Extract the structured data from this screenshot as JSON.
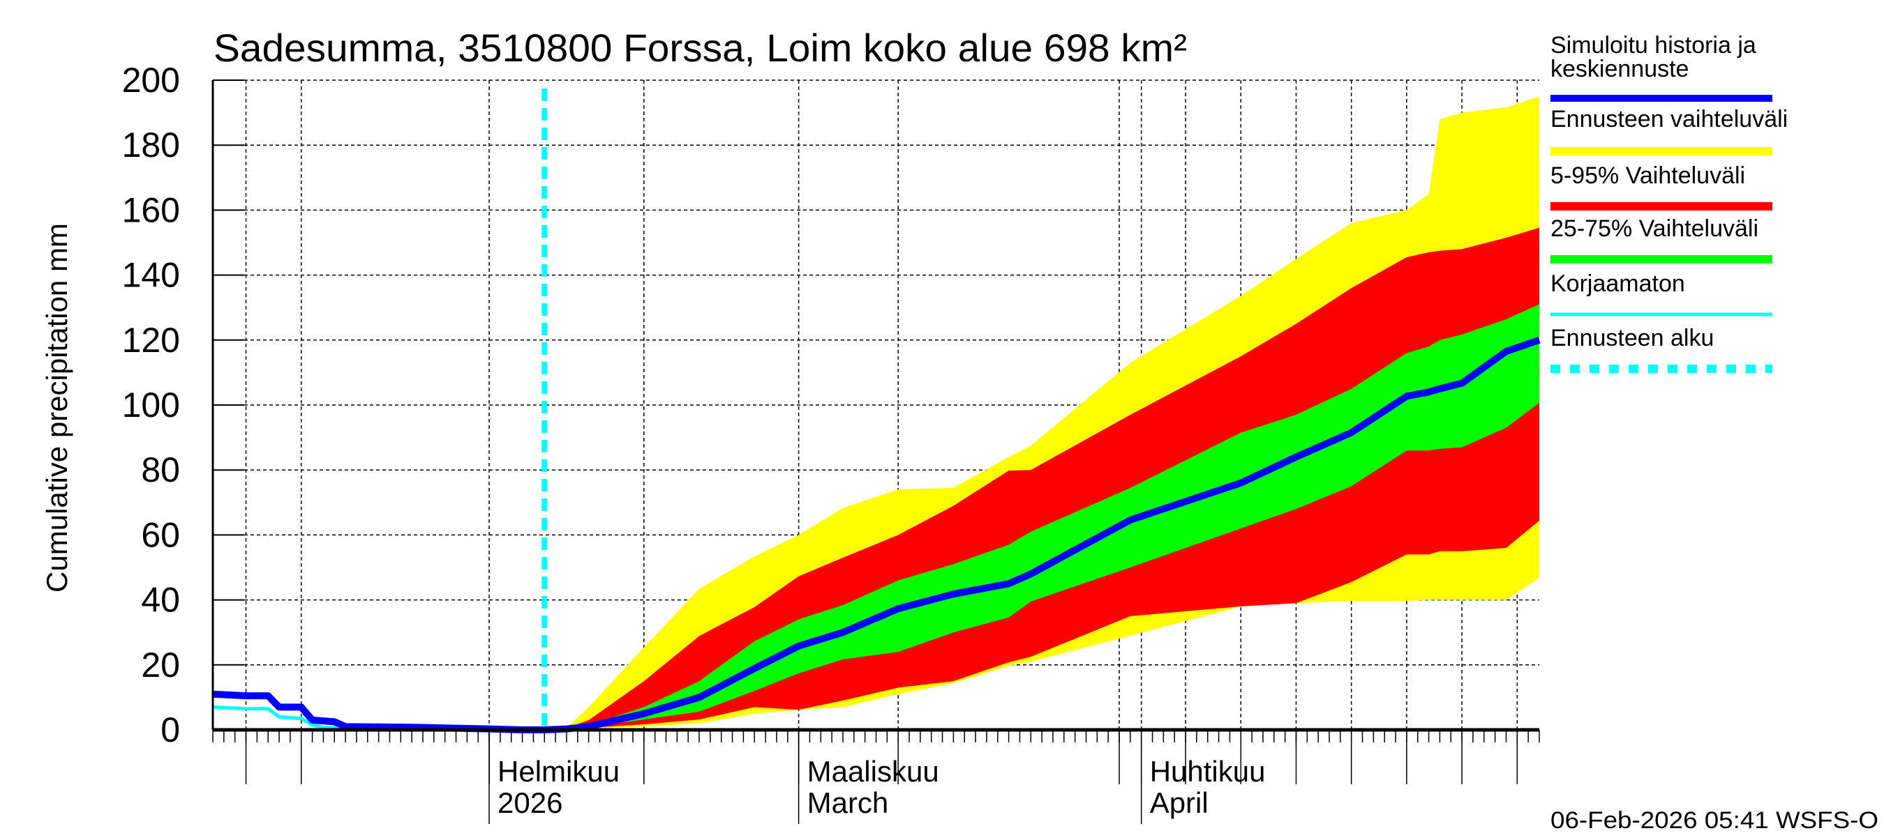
{
  "chart_data": {
    "type": "area",
    "title": "Sadesumma, 3510800 Forssa, Loim koko alue 698 km²",
    "ylabel": "Cumulative precipitation    mm",
    "xlabel": "",
    "ylim": [
      0,
      200
    ],
    "yticks": [
      "0",
      "20",
      "40",
      "60",
      "80",
      "100",
      "120",
      "140",
      "160",
      "180",
      "200"
    ],
    "xlim": [
      "2026-01-07",
      "2026-05-07"
    ],
    "grid": true,
    "legend_position": "right",
    "month_labels": [
      {
        "date": "2026-02-01",
        "line1": "Helmikuu",
        "line2": "2026"
      },
      {
        "date": "2026-03-01",
        "line1": "Maaliskuu",
        "line2": "March"
      },
      {
        "date": "2026-04-01",
        "line1": "Huhtikuu",
        "line2": "April"
      }
    ],
    "forecast_start": "2026-02-06",
    "history": {
      "name": "Simuloitu historia ja keskiennuste",
      "dates": [
        "2026-01-07",
        "2026-01-10",
        "2026-01-12",
        "2026-01-13",
        "2026-01-15",
        "2026-01-16",
        "2026-01-18",
        "2026-01-19",
        "2026-01-25",
        "2026-02-01",
        "2026-02-04",
        "2026-02-06"
      ],
      "values": [
        11,
        10.5,
        10.5,
        7,
        7,
        3,
        2.5,
        1,
        0.8,
        0.3,
        0,
        0
      ]
    },
    "uncorrected": {
      "name": "Korjaamaton",
      "dates": [
        "2026-01-07",
        "2026-01-10",
        "2026-01-12",
        "2026-01-13",
        "2026-01-15",
        "2026-01-16",
        "2026-01-17",
        "2026-01-25",
        "2026-02-01",
        "2026-02-04",
        "2026-02-06"
      ],
      "values": [
        7,
        6.5,
        6.5,
        4,
        3.5,
        1.5,
        0.7,
        0.5,
        0.2,
        0,
        0
      ]
    },
    "forecast": {
      "dates": [
        "2026-02-06",
        "2026-02-08",
        "2026-02-10",
        "2026-02-15",
        "2026-02-20",
        "2026-02-25",
        "2026-03-01",
        "2026-03-05",
        "2026-03-10",
        "2026-03-15",
        "2026-03-20",
        "2026-03-22",
        "2026-03-31",
        "2026-04-10",
        "2026-04-15",
        "2026-04-20",
        "2026-04-25",
        "2026-04-27",
        "2026-04-28",
        "2026-04-30",
        "2026-05-04",
        "2026-05-07"
      ],
      "min": [
        0,
        0.2,
        0.5,
        1,
        2,
        5,
        6.2,
        7,
        11,
        14.4,
        19.7,
        21,
        29,
        38,
        39,
        39.7,
        39.7,
        40,
        40,
        40,
        40,
        46.8
      ],
      "p5": [
        0,
        0.2,
        0.6,
        1.7,
        3.2,
        7,
        6.2,
        9,
        13,
        15,
        20.8,
        22.5,
        35,
        38,
        39,
        45.5,
        54,
        54,
        55,
        55,
        56,
        64.4
      ],
      "p25": [
        0,
        0.3,
        0.8,
        3.2,
        5.6,
        12,
        17.4,
        21.7,
        24,
        30,
        34.6,
        39.5,
        50,
        62,
        68,
        75,
        86,
        86,
        86.5,
        87,
        93,
        100.7
      ],
      "median": [
        0,
        0.3,
        1,
        5,
        10,
        18.9,
        25.8,
        30,
        37.3,
        41.8,
        45,
        48,
        64.6,
        76,
        84,
        91.5,
        102.7,
        104,
        105,
        106.7,
        116.5,
        120
      ],
      "p75": [
        0,
        0.4,
        1.5,
        7,
        15,
        27.3,
        34,
        38.4,
        46,
        51,
        57,
        61,
        74.5,
        91.5,
        97,
        105,
        116,
        118,
        120,
        121.7,
        126.4,
        131
      ],
      "p95": [
        0,
        0.5,
        3,
        15,
        28.9,
        37.8,
        47.3,
        53,
        60,
        69,
        79.8,
        80,
        97,
        115,
        125,
        136,
        145.5,
        147,
        147.5,
        148,
        151.5,
        154.6
      ],
      "max": [
        0,
        0.6,
        7,
        25.4,
        43.4,
        53.4,
        60,
        68.3,
        74,
        74.5,
        84,
        87.5,
        113,
        133.6,
        145,
        156,
        160,
        165,
        188,
        190,
        191.6,
        195
      ]
    },
    "legend": [
      {
        "label_lines": [
          "Simuloitu historia ja",
          "keskiennuste"
        ],
        "color": "#0000ff",
        "style": "solid-thick"
      },
      {
        "label_lines": [
          "Ennusteen vaihteluväli"
        ],
        "color": "#ffff00",
        "style": "band"
      },
      {
        "label_lines": [
          "5-95% Vaihteluväli"
        ],
        "color": "#ff0000",
        "style": "band"
      },
      {
        "label_lines": [
          "25-75% Vaihteluväli"
        ],
        "color": "#00ff00",
        "style": "band"
      },
      {
        "label_lines": [
          "Korjaamaton"
        ],
        "color": "#00ffff",
        "style": "solid-thin"
      },
      {
        "label_lines": [
          "Ennusteen alku"
        ],
        "color": "#00ffff",
        "style": "dashed"
      }
    ],
    "timestamp": "06-Feb-2026 05:41 WSFS-O"
  }
}
